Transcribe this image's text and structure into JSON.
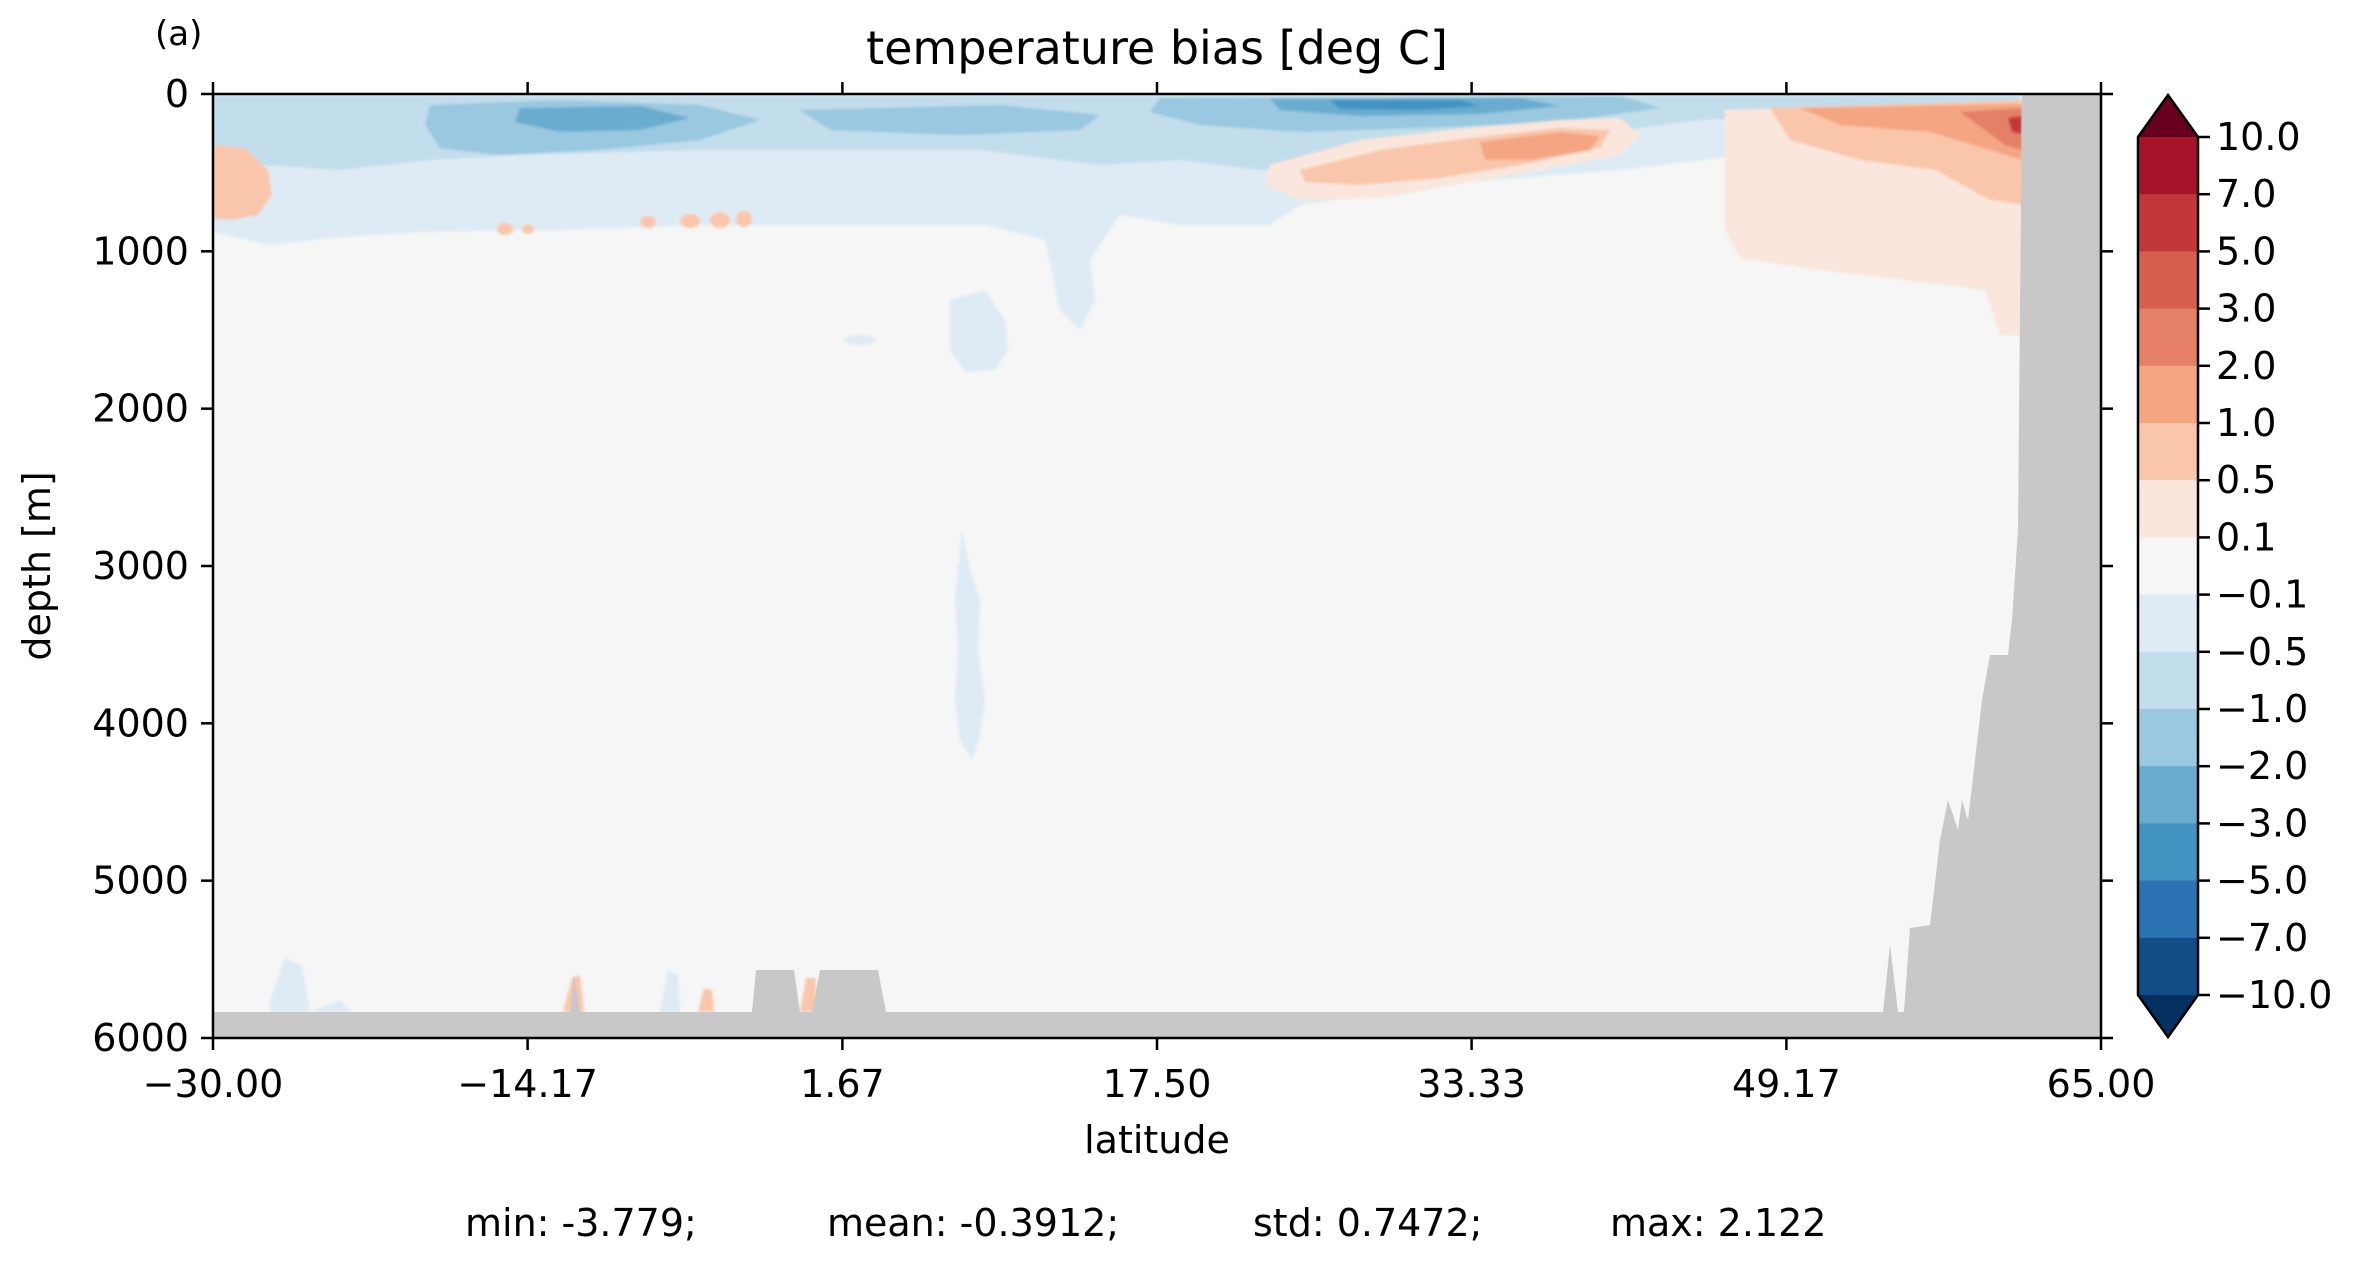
{
  "panel_label": "(a)",
  "chart_data": {
    "type": "heatmap",
    "title": "temperature bias [deg C]",
    "xlabel": "latitude",
    "ylabel": "depth [m]",
    "xlim": [
      -30.0,
      65.0
    ],
    "ylim": [
      6000,
      0
    ],
    "y_inverted": true,
    "x_ticks": [
      "−30.00",
      "−14.17",
      "1.67",
      "17.50",
      "33.33",
      "49.17",
      "65.00"
    ],
    "x_tick_values": [
      -30.0,
      -14.17,
      1.67,
      17.5,
      33.33,
      49.17,
      65.0
    ],
    "y_ticks": [
      "0",
      "1000",
      "2000",
      "3000",
      "4000",
      "5000",
      "6000"
    ],
    "y_tick_values": [
      0,
      1000,
      2000,
      3000,
      4000,
      5000,
      6000
    ],
    "colorbar": {
      "extend": "both",
      "levels": [
        "10.0",
        "7.0",
        "5.0",
        "3.0",
        "2.0",
        "1.0",
        "0.5",
        "0.1",
        "−0.1",
        "−0.5",
        "−1.0",
        "−2.0",
        "−3.0",
        "−5.0",
        "−7.0",
        "−10.0"
      ],
      "colors": [
        "#67001f",
        "#a51429",
        "#c1373a",
        "#d6604d",
        "#e48066",
        "#f4a582",
        "#f9c6ac",
        "#fae6dc",
        "#f5f6f5",
        "#deebf4",
        "#c2ddeb",
        "#9ac8e0",
        "#6aacd0",
        "#4393c3",
        "#2b73b3",
        "#134c86",
        "#053061"
      ]
    },
    "land_color": "#c8c8c8",
    "stats": {
      "min": "min: -3.779;",
      "mean": "mean: -0.3912;",
      "std": "std: 0.7472;",
      "max": "max: 2.122"
    }
  }
}
